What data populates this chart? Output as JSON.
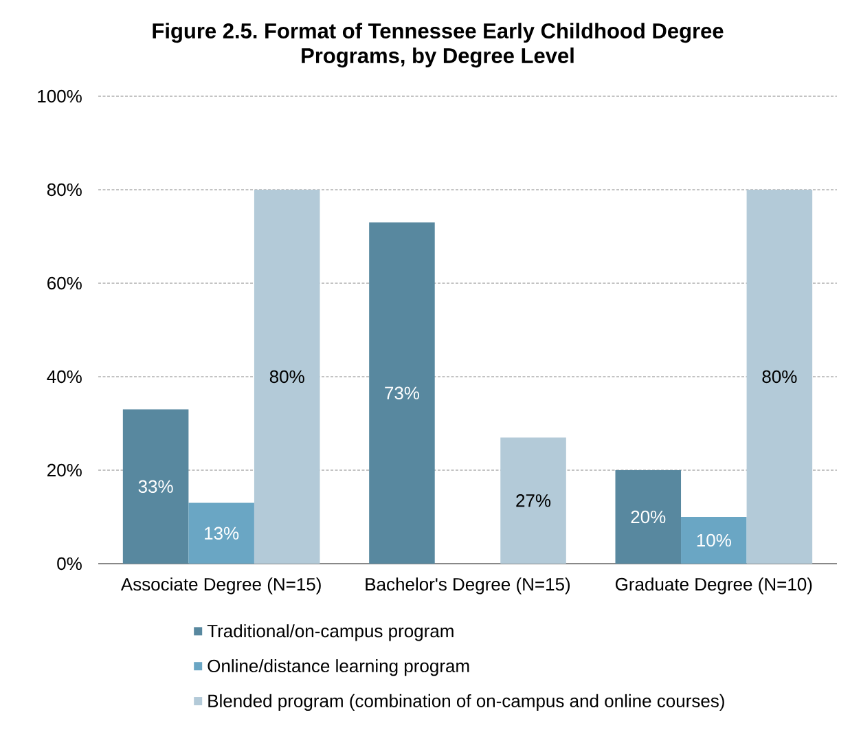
{
  "chart_data": {
    "type": "bar",
    "title": "Figure 2.5. Format of Tennessee Early Childhood Degree Programs, by Degree Level",
    "categories": [
      "Associate Degree (N=15)",
      "Bachelor's Degree (N=15)",
      "Graduate Degree (N=10)"
    ],
    "series": [
      {
        "name": "Traditional/on-campus program",
        "color": "#58889f",
        "values": [
          33,
          73,
          20
        ],
        "value_labels": [
          "33%",
          "73%",
          "20%"
        ]
      },
      {
        "name": "Online/distance learning program",
        "color": "#6aa6c4",
        "values": [
          13,
          null,
          10
        ],
        "value_labels": [
          "13%",
          null,
          "10%"
        ]
      },
      {
        "name": "Blended program (combination of on-campus and online courses)",
        "color": "#b3cad8",
        "values": [
          80,
          27,
          80
        ],
        "value_labels": [
          "80%",
          "27%",
          "80%"
        ]
      }
    ],
    "ylim": [
      0,
      100
    ],
    "yticks": [
      {
        "value": 0,
        "label": "0%"
      },
      {
        "value": 20,
        "label": "20%"
      },
      {
        "value": 40,
        "label": "40%"
      },
      {
        "value": 60,
        "label": "60%"
      },
      {
        "value": 80,
        "label": "80%"
      },
      {
        "value": 100,
        "label": "100%"
      }
    ],
    "grid": "y",
    "legend": "bottom"
  }
}
